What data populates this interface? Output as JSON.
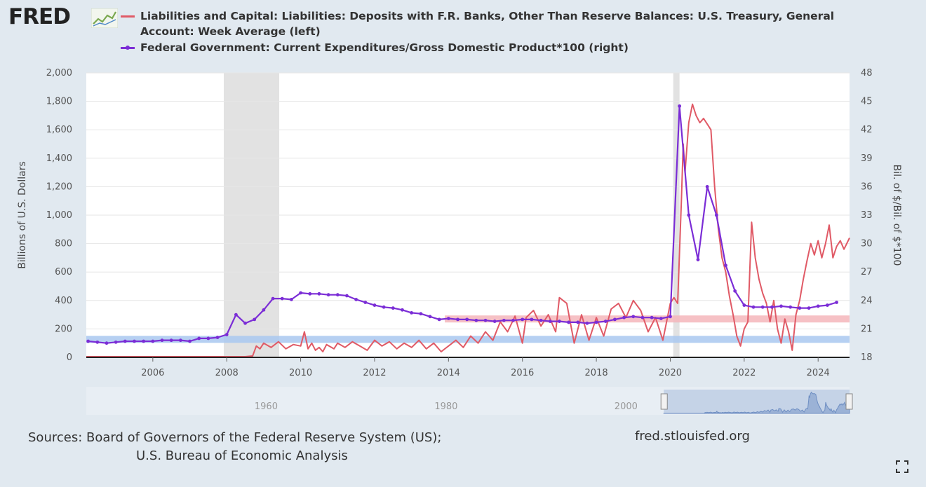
{
  "logo": {
    "text": "FRED",
    "icon": "fred-chart-logo-icon"
  },
  "sources": {
    "line1": "Sources: Board of Governors of the Federal Reserve System (US);",
    "line2": "U.S. Bureau of Economic Analysis"
  },
  "site": "fred.stlouisfed.org",
  "controls": {
    "fullscreen_icon": "fullscreen-icon"
  },
  "chart_data": {
    "type": "line",
    "title": "",
    "xlabel": "",
    "ylabel_left": "Billions of U.S. Dollars",
    "ylabel_right": "Bil. of $/Bil. of $*100",
    "xlim": [
      2004.2,
      2024.85
    ],
    "ylim_left": [
      0,
      2000
    ],
    "ylim_right": [
      18,
      48
    ],
    "x_ticks": [
      2006,
      2008,
      2010,
      2012,
      2014,
      2016,
      2018,
      2020,
      2022,
      2024
    ],
    "x_tick_labels": [
      "2006",
      "2008",
      "2010",
      "2012",
      "2014",
      "2016",
      "2018",
      "2020",
      "2022",
      "2024"
    ],
    "y_left_ticks": [
      0,
      200,
      400,
      600,
      800,
      1000,
      1200,
      1400,
      1600,
      1800,
      2000
    ],
    "y_left_tick_labels": [
      "0",
      "200",
      "400",
      "600",
      "800",
      "1,000",
      "1,200",
      "1,400",
      "1,600",
      "1,800",
      "2,000"
    ],
    "y_right_ticks": [
      18,
      21,
      24,
      27,
      30,
      33,
      36,
      39,
      42,
      45,
      48
    ],
    "y_right_tick_labels": [
      "18",
      "21",
      "24",
      "27",
      "30",
      "33",
      "36",
      "39",
      "42",
      "45",
      "48"
    ],
    "grid": true,
    "legend_position": "top",
    "recessions": [
      [
        2007.92,
        2009.42
      ],
      [
        2020.08,
        2020.25
      ]
    ],
    "reference_bands": [
      {
        "axis": "left",
        "x_start": 2013.9,
        "x_end": 2024.85,
        "y": 270,
        "color": "#f4b6bb"
      },
      {
        "axis": "right",
        "x_start": 2004.2,
        "x_end": 2024.85,
        "y": 19.9,
        "color": "#a9c8f0"
      }
    ],
    "series": [
      {
        "name": "Liabilities and Capital: Liabilities: Deposits with F.R. Banks, Other Than Reserve Balances: U.S. Treasury, General Account: Week Average (left)",
        "axis": "left",
        "color": "#e05a66",
        "x": [
          2004.2,
          2005.0,
          2006.0,
          2007.0,
          2007.9,
          2008.5,
          2008.7,
          2008.8,
          2008.9,
          2009.0,
          2009.2,
          2009.4,
          2009.6,
          2009.8,
          2010.0,
          2010.1,
          2010.2,
          2010.3,
          2010.4,
          2010.5,
          2010.6,
          2010.7,
          2010.9,
          2011.0,
          2011.2,
          2011.4,
          2011.6,
          2011.8,
          2012.0,
          2012.2,
          2012.4,
          2012.6,
          2012.8,
          2013.0,
          2013.2,
          2013.4,
          2013.6,
          2013.8,
          2014.0,
          2014.2,
          2014.4,
          2014.6,
          2014.8,
          2015.0,
          2015.2,
          2015.4,
          2015.6,
          2015.8,
          2016.0,
          2016.1,
          2016.3,
          2016.5,
          2016.7,
          2016.9,
          2017.0,
          2017.2,
          2017.4,
          2017.6,
          2017.8,
          2018.0,
          2018.2,
          2018.4,
          2018.6,
          2018.8,
          2019.0,
          2019.2,
          2019.4,
          2019.6,
          2019.8,
          2020.0,
          2020.1,
          2020.2,
          2020.3,
          2020.35,
          2020.4,
          2020.5,
          2020.6,
          2020.7,
          2020.8,
          2020.9,
          2021.0,
          2021.1,
          2021.2,
          2021.3,
          2021.4,
          2021.5,
          2021.6,
          2021.7,
          2021.8,
          2021.9,
          2022.0,
          2022.1,
          2022.2,
          2022.3,
          2022.4,
          2022.5,
          2022.6,
          2022.7,
          2022.8,
          2022.9,
          2023.0,
          2023.1,
          2023.2,
          2023.3,
          2023.4,
          2023.5,
          2023.6,
          2023.7,
          2023.8,
          2023.9,
          2024.0,
          2024.1,
          2024.2,
          2024.3,
          2024.4,
          2024.5,
          2024.6,
          2024.7,
          2024.85
        ],
        "y": [
          5,
          5,
          5,
          5,
          5,
          5,
          10,
          80,
          60,
          100,
          70,
          110,
          60,
          90,
          80,
          180,
          60,
          100,
          50,
          70,
          40,
          90,
          60,
          100,
          70,
          110,
          80,
          50,
          120,
          80,
          110,
          60,
          100,
          70,
          120,
          60,
          100,
          40,
          80,
          120,
          70,
          150,
          100,
          180,
          120,
          250,
          180,
          290,
          100,
          280,
          330,
          220,
          300,
          180,
          420,
          380,
          100,
          300,
          120,
          280,
          150,
          340,
          380,
          280,
          400,
          330,
          180,
          280,
          120,
          380,
          420,
          380,
          1100,
          1500,
          1300,
          1650,
          1780,
          1700,
          1650,
          1680,
          1640,
          1600,
          1200,
          900,
          700,
          600,
          430,
          300,
          150,
          80,
          200,
          250,
          950,
          700,
          550,
          450,
          380,
          250,
          400,
          200,
          100,
          270,
          180,
          50,
          300,
          400,
          550,
          680,
          800,
          720,
          820,
          700,
          800,
          930,
          700,
          780,
          820,
          760,
          840
        ]
      },
      {
        "name": "Federal Government: Current Expenditures/Gross Domestic Product*100 (right)",
        "axis": "right",
        "color": "#7b2dd6",
        "x": [
          2004.25,
          2004.5,
          2004.75,
          2005.0,
          2005.25,
          2005.5,
          2005.75,
          2006.0,
          2006.25,
          2006.5,
          2006.75,
          2007.0,
          2007.25,
          2007.5,
          2007.75,
          2008.0,
          2008.25,
          2008.5,
          2008.75,
          2009.0,
          2009.25,
          2009.5,
          2009.75,
          2010.0,
          2010.25,
          2010.5,
          2010.75,
          2011.0,
          2011.25,
          2011.5,
          2011.75,
          2012.0,
          2012.25,
          2012.5,
          2012.75,
          2013.0,
          2013.25,
          2013.5,
          2013.75,
          2014.0,
          2014.25,
          2014.5,
          2014.75,
          2015.0,
          2015.25,
          2015.5,
          2015.75,
          2016.0,
          2016.25,
          2016.5,
          2016.75,
          2017.0,
          2017.25,
          2017.5,
          2017.75,
          2018.0,
          2018.25,
          2018.5,
          2018.75,
          2019.0,
          2019.25,
          2019.5,
          2019.75,
          2020.0,
          2020.25,
          2020.5,
          2020.75,
          2021.0,
          2021.25,
          2021.5,
          2021.75,
          2022.0,
          2022.25,
          2022.5,
          2022.75,
          2023.0,
          2023.25,
          2023.5,
          2023.75,
          2024.0,
          2024.25,
          2024.5
        ],
        "y": [
          19.7,
          19.6,
          19.5,
          19.6,
          19.7,
          19.7,
          19.7,
          19.7,
          19.8,
          19.8,
          19.8,
          19.7,
          20.0,
          20.0,
          20.1,
          20.4,
          22.5,
          21.6,
          22.0,
          23.0,
          24.2,
          24.2,
          24.1,
          24.8,
          24.7,
          24.7,
          24.6,
          24.6,
          24.5,
          24.1,
          23.8,
          23.5,
          23.3,
          23.2,
          23.0,
          22.7,
          22.6,
          22.3,
          22.0,
          22.1,
          22.0,
          22.0,
          21.9,
          21.9,
          21.8,
          21.9,
          21.9,
          22.0,
          22.0,
          21.9,
          21.8,
          21.8,
          21.7,
          21.7,
          21.6,
          21.7,
          21.8,
          22.0,
          22.2,
          22.3,
          22.2,
          22.2,
          22.1,
          22.3,
          44.5,
          33.0,
          28.3,
          36.0,
          33.0,
          27.7,
          25.0,
          23.5,
          23.3,
          23.3,
          23.3,
          23.4,
          23.3,
          23.2,
          23.2,
          23.4,
          23.5,
          23.8
        ]
      }
    ],
    "navigator": {
      "tick_labels": [
        "1960",
        "1980",
        "2000"
      ],
      "tick_years": [
        1960,
        1980,
        2000
      ],
      "range": [
        1940,
        2024.85
      ],
      "selected": [
        2004.2,
        2024.85
      ]
    }
  }
}
